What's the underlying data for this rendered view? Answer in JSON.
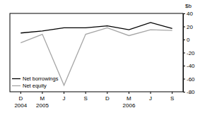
{
  "chart_data": {
    "type": "line",
    "y_label": "$b",
    "categories": [
      "D 2004",
      "M 2005",
      "J",
      "S",
      "D",
      "M 2006",
      "J",
      "S"
    ],
    "series": [
      {
        "name": "Net borrowings",
        "color": "#000000",
        "values": [
          10,
          13,
          18,
          18,
          21,
          15,
          26,
          17
        ]
      },
      {
        "name": "Net equity",
        "color": "#a6a6a6",
        "values": [
          -5,
          8,
          -70,
          8,
          18,
          6,
          15,
          14
        ]
      }
    ],
    "ylim": [
      -80,
      40
    ],
    "yticks": [
      -80,
      -60,
      -40,
      -20,
      0,
      20,
      40
    ],
    "legend": "lower left",
    "grid": false
  }
}
